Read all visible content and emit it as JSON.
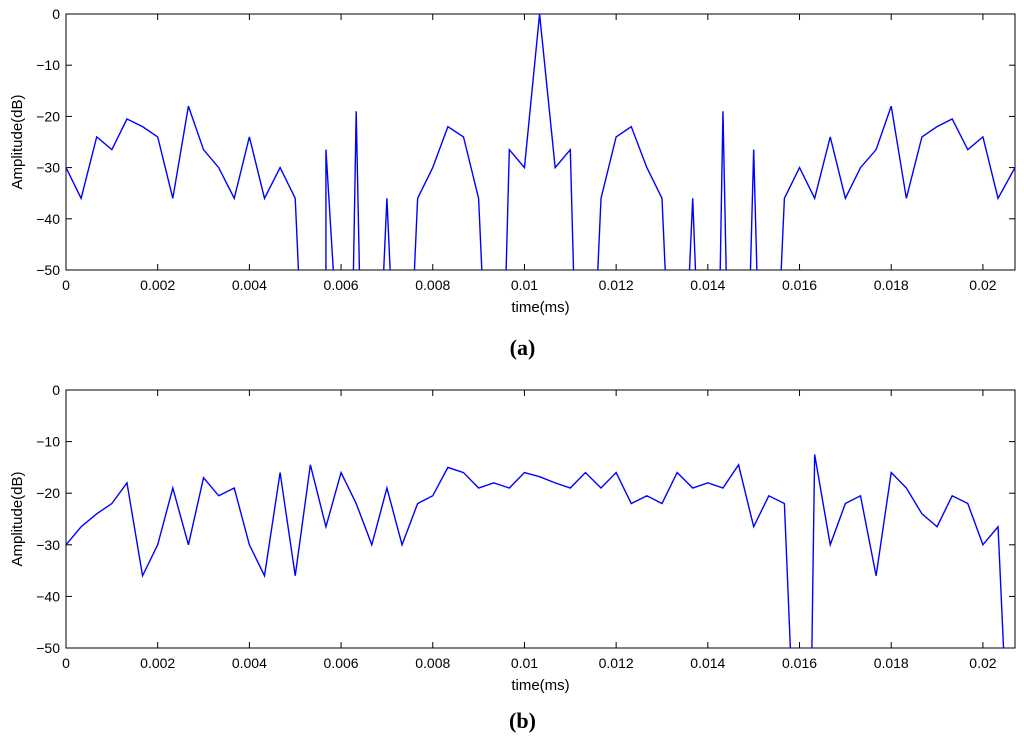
{
  "chart_data": [
    {
      "type": "line",
      "panel_label": "a",
      "xlabel": "time(ms)",
      "ylabel": "Amplitude(dB)",
      "xlim": [
        0,
        0.0207
      ],
      "ylim": [
        -50,
        0
      ],
      "x_ticks": [
        0,
        0.002,
        0.004,
        0.006,
        0.008,
        0.01,
        0.012,
        0.014,
        0.016,
        0.018,
        0.02
      ],
      "x_tick_labels": [
        "0",
        "0.002",
        "0.004",
        "0.006",
        "0.008",
        "0.01",
        "0.012",
        "0.014",
        "0.016",
        "0.018",
        "0.02"
      ],
      "y_ticks": [
        0,
        -10,
        -20,
        -30,
        -40,
        -50
      ],
      "y_tick_labels": [
        "0",
        "−10",
        "−20",
        "−30",
        "−40",
        "−50"
      ],
      "grid": false,
      "color": "#0000ff",
      "series": [
        {
          "points": [
            [
              0,
              -30
            ],
            [
              0.00033,
              -36
            ],
            [
              0.00067,
              -24
            ],
            [
              0.001,
              -26.5
            ],
            [
              0.00133,
              -20.5
            ],
            [
              0.00167,
              -22
            ],
            [
              0.002,
              -24
            ],
            [
              0.00233,
              -36
            ],
            [
              0.00267,
              -18
            ],
            [
              0.003,
              -26.5
            ],
            [
              0.00333,
              -30
            ],
            [
              0.00367,
              -36
            ],
            [
              0.004,
              -24
            ],
            [
              0.00433,
              -36
            ],
            [
              0.00467,
              -30
            ],
            [
              0.005,
              -36
            ],
            [
              0.00507,
              -50
            ],
            null,
            [
              0.00567,
              -50
            ],
            [
              0.00567,
              -26.5
            ],
            [
              0.00583,
              -50
            ],
            null,
            [
              0.00627,
              -50
            ],
            [
              0.00633,
              -19
            ],
            [
              0.0064,
              -50
            ],
            null,
            [
              0.00693,
              -50
            ],
            [
              0.007,
              -36
            ],
            [
              0.00707,
              -50
            ],
            null,
            [
              0.0076,
              -50
            ],
            [
              0.00767,
              -36
            ],
            [
              0.008,
              -30
            ],
            [
              0.00833,
              -22
            ],
            [
              0.00867,
              -24
            ],
            [
              0.009,
              -36
            ],
            [
              0.00907,
              -50
            ],
            null,
            [
              0.0096,
              -50
            ],
            [
              0.00967,
              -26.5
            ],
            [
              0.01,
              -30
            ],
            [
              0.01033,
              0
            ],
            [
              0.01067,
              -30
            ],
            [
              0.011,
              -26.5
            ],
            [
              0.01107,
              -50
            ],
            null,
            [
              0.0116,
              -50
            ],
            [
              0.01167,
              -36
            ],
            [
              0.012,
              -24
            ],
            [
              0.01233,
              -22
            ],
            [
              0.01267,
              -30
            ],
            [
              0.013,
              -36
            ],
            [
              0.01307,
              -50
            ],
            null,
            [
              0.0136,
              -50
            ],
            [
              0.01367,
              -36
            ],
            [
              0.01373,
              -50
            ],
            null,
            [
              0.01427,
              -50
            ],
            [
              0.01433,
              -19
            ],
            [
              0.0144,
              -50
            ],
            null,
            [
              0.01493,
              -50
            ],
            [
              0.015,
              -26.5
            ],
            [
              0.01507,
              -50
            ],
            null,
            [
              0.0156,
              -50
            ],
            [
              0.01567,
              -36
            ],
            [
              0.016,
              -30
            ],
            [
              0.01633,
              -36
            ],
            [
              0.01667,
              -24
            ],
            [
              0.017,
              -36
            ],
            [
              0.01733,
              -30
            ],
            [
              0.01767,
              -26.5
            ],
            [
              0.018,
              -18
            ],
            [
              0.01833,
              -36
            ],
            [
              0.01867,
              -24
            ],
            [
              0.019,
              -22
            ],
            [
              0.01933,
              -20.5
            ],
            [
              0.01967,
              -26.5
            ],
            [
              0.02,
              -24
            ],
            [
              0.02033,
              -36
            ],
            [
              0.0207,
              -30
            ]
          ]
        }
      ]
    },
    {
      "type": "line",
      "panel_label": "b",
      "xlabel": "time(ms)",
      "ylabel": "Amplitude(dB)",
      "xlim": [
        0,
        0.0207
      ],
      "ylim": [
        -50,
        0
      ],
      "x_ticks": [
        0,
        0.002,
        0.004,
        0.006,
        0.008,
        0.01,
        0.012,
        0.014,
        0.016,
        0.018,
        0.02
      ],
      "x_tick_labels": [
        "0",
        "0.002",
        "0.004",
        "0.006",
        "0.008",
        "0.01",
        "0.012",
        "0.014",
        "0.016",
        "0.018",
        "0.02"
      ],
      "y_ticks": [
        0,
        -10,
        -20,
        -30,
        -40,
        -50
      ],
      "y_tick_labels": [
        "0",
        "−10",
        "−20",
        "−30",
        "−40",
        "−50"
      ],
      "grid": false,
      "color": "#0000ff",
      "series": [
        {
          "points": [
            [
              0,
              -30
            ],
            [
              0.00033,
              -26.5
            ],
            [
              0.00067,
              -24
            ],
            [
              0.001,
              -22
            ],
            [
              0.00133,
              -18
            ],
            [
              0.00167,
              -36
            ],
            [
              0.002,
              -30
            ],
            [
              0.00233,
              -19
            ],
            [
              0.00267,
              -30
            ],
            [
              0.003,
              -17
            ],
            [
              0.00333,
              -20.5
            ],
            [
              0.00367,
              -19
            ],
            [
              0.004,
              -30
            ],
            [
              0.00433,
              -36
            ],
            [
              0.00467,
              -16
            ],
            [
              0.005,
              -36
            ],
            [
              0.00533,
              -14.5
            ],
            [
              0.00567,
              -26.5
            ],
            [
              0.006,
              -16
            ],
            [
              0.00633,
              -22
            ],
            [
              0.00667,
              -30
            ],
            [
              0.007,
              -19
            ],
            [
              0.00733,
              -30
            ],
            [
              0.00767,
              -22
            ],
            [
              0.008,
              -20.5
            ],
            [
              0.00833,
              -15
            ],
            [
              0.00867,
              -16
            ],
            [
              0.009,
              -19
            ],
            [
              0.00933,
              -18
            ],
            [
              0.00967,
              -19
            ],
            [
              0.01,
              -16
            ],
            [
              0.01033,
              -16.8
            ],
            [
              0.01067,
              -18
            ],
            [
              0.011,
              -19
            ],
            [
              0.01133,
              -16
            ],
            [
              0.01167,
              -19
            ],
            [
              0.012,
              -16
            ],
            [
              0.01233,
              -22
            ],
            [
              0.01267,
              -20.5
            ],
            [
              0.013,
              -22
            ],
            [
              0.01333,
              -16
            ],
            [
              0.01367,
              -19
            ],
            [
              0.014,
              -18
            ],
            [
              0.01433,
              -19
            ],
            [
              0.01467,
              -14.5
            ],
            [
              0.015,
              -26.5
            ],
            [
              0.01533,
              -20.5
            ],
            [
              0.01567,
              -22
            ],
            [
              0.0158,
              -50
            ],
            null,
            [
              0.01627,
              -50
            ],
            [
              0.01633,
              -12.5
            ],
            [
              0.01667,
              -30
            ],
            [
              0.017,
              -22
            ],
            [
              0.01733,
              -20.5
            ],
            [
              0.01767,
              -36
            ],
            [
              0.018,
              -16
            ],
            [
              0.01833,
              -19
            ],
            [
              0.01867,
              -24
            ],
            [
              0.019,
              -26.5
            ],
            [
              0.01933,
              -20.5
            ],
            [
              0.01967,
              -22
            ],
            [
              0.02,
              -30
            ],
            [
              0.02033,
              -26.5
            ],
            [
              0.02045,
              -50
            ]
          ]
        }
      ]
    }
  ]
}
